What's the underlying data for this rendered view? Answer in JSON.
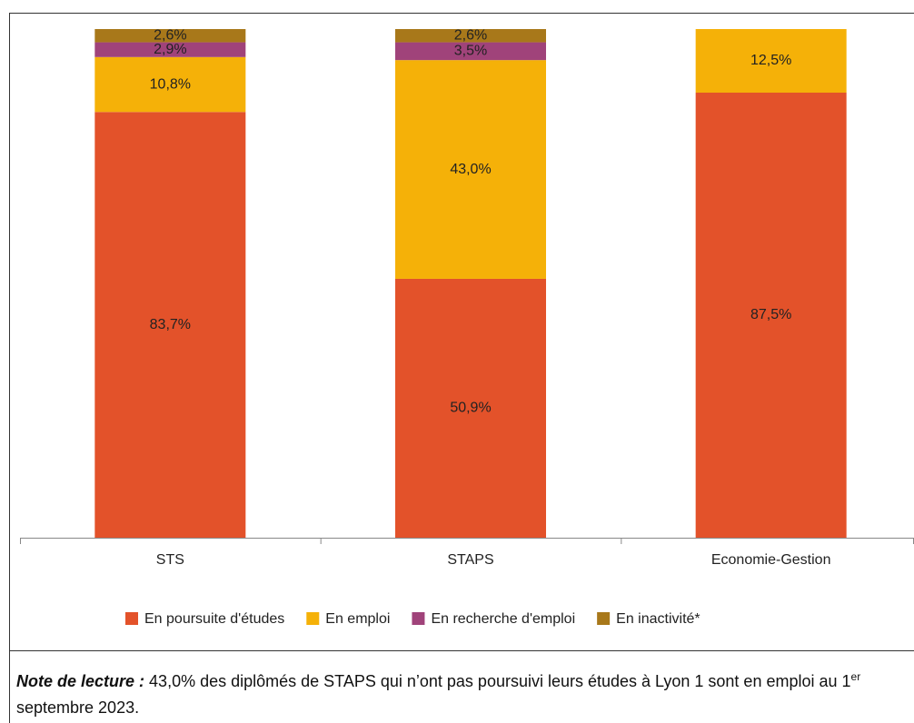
{
  "chart_data": {
    "type": "stacked_bar",
    "categories": [
      "STS",
      "STAPS",
      "Economie-Gestion"
    ],
    "ylim": [
      0,
      100
    ],
    "series": [
      {
        "name": "En poursuite d'études",
        "color": "#e3522a",
        "values": [
          83.7,
          50.9,
          87.5
        ],
        "value_labels": [
          "83,7%",
          "50,9%",
          "87,5%"
        ]
      },
      {
        "name": "En emploi",
        "color": "#f5b108",
        "values": [
          10.8,
          43.0,
          12.5
        ],
        "value_labels": [
          "10,8%",
          "43,0%",
          "12,5%"
        ]
      },
      {
        "name": "En recherche d'emploi",
        "color": "#a0437a",
        "values": [
          2.9,
          3.5,
          null
        ],
        "value_labels": [
          "2,9%",
          "3,5%",
          null
        ]
      },
      {
        "name": "En inactivité*",
        "color": "#a8781a",
        "values": [
          2.6,
          2.6,
          null
        ],
        "value_labels": [
          "2,6%",
          "2,6%",
          null
        ]
      }
    ],
    "legend": "bottom"
  },
  "note": {
    "label": "Note de lecture :",
    "text": "43,0% des diplômés de STAPS qui n’ont pas poursuivi leurs études à Lyon 1 sont en emploi au 1",
    "sup": "er",
    "text_end": "septembre 2023."
  }
}
